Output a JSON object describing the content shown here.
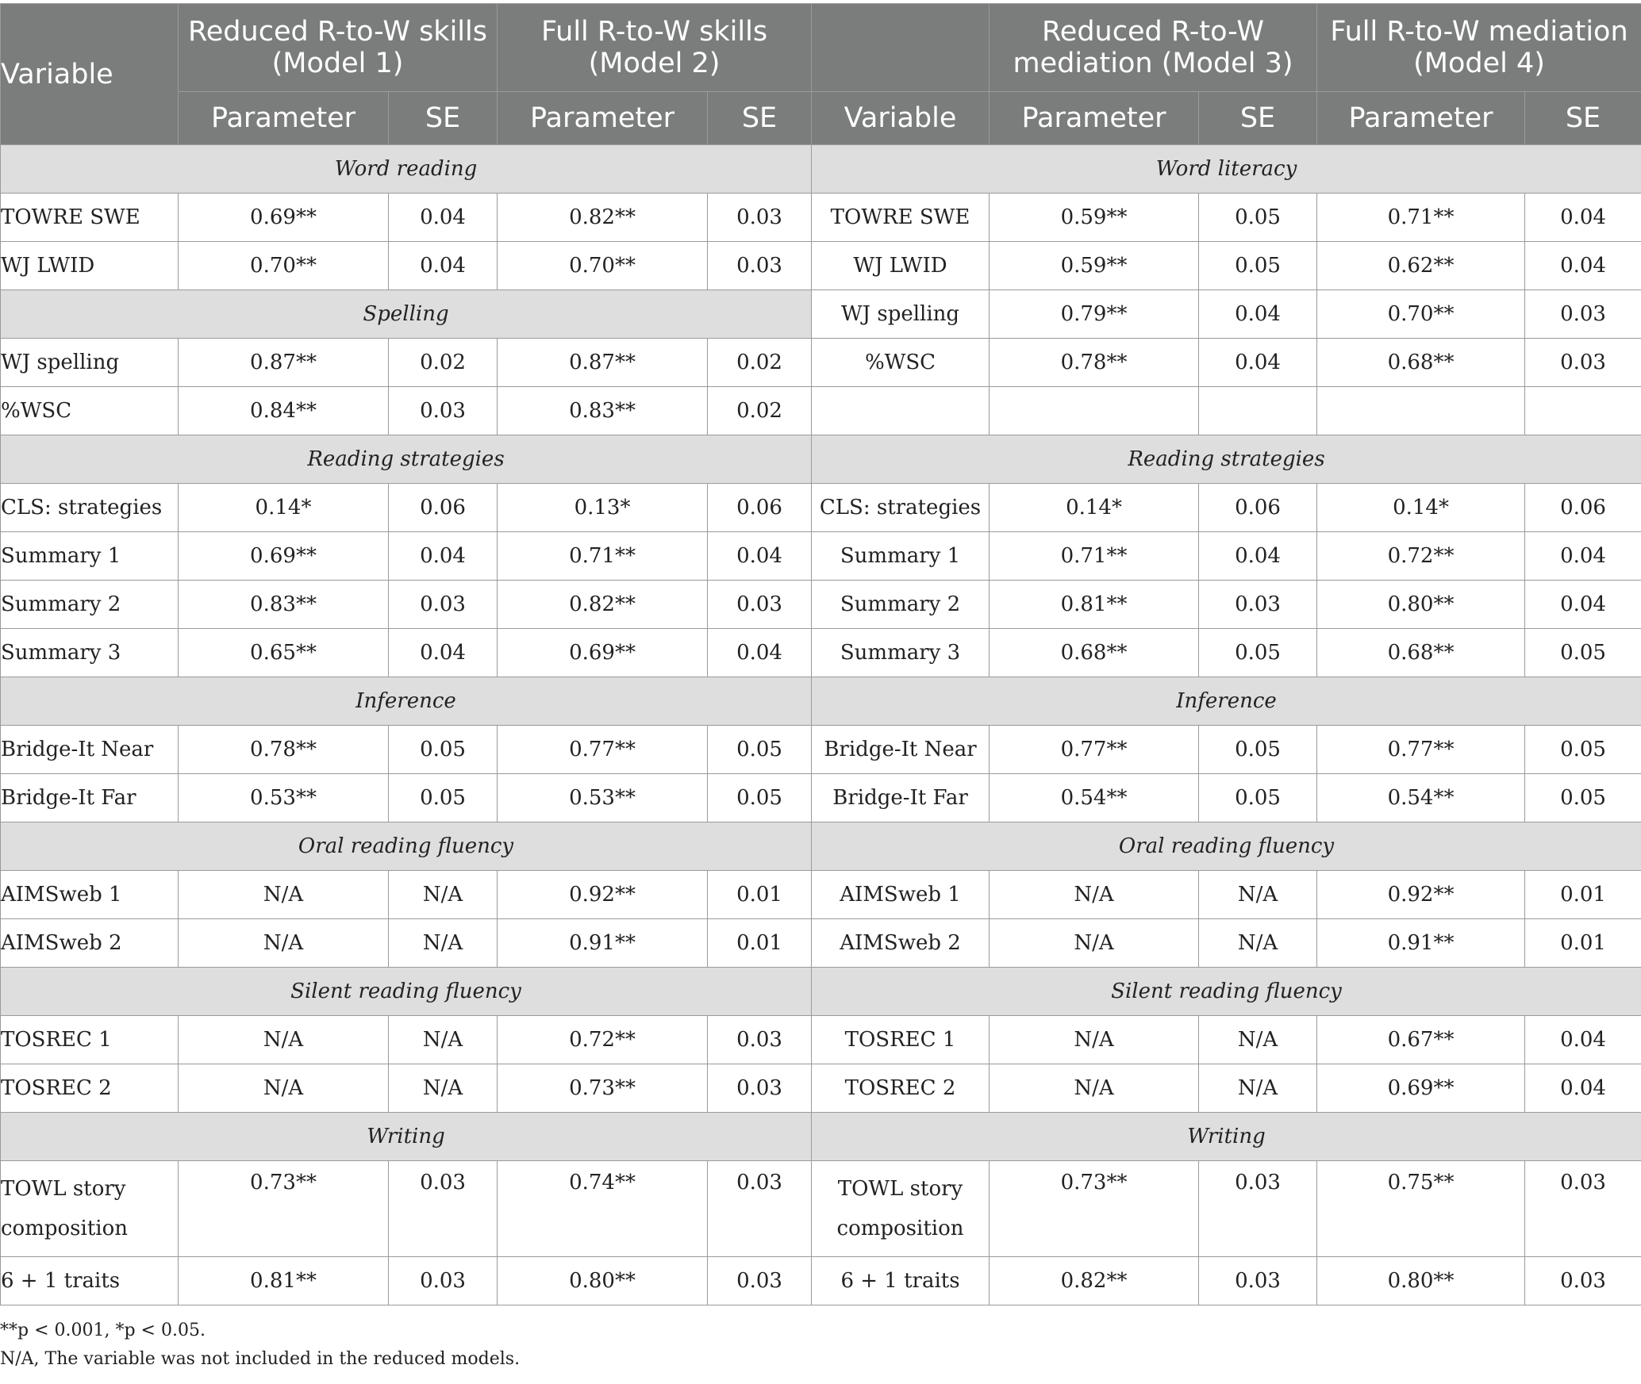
{
  "header": {
    "variable_label": "Variable",
    "model1": "Reduced R-to-W skills (Model 1)",
    "model2": "Full R-to-W skills (Model 2)",
    "model3": "Reduced R-to-W mediation (Model 3)",
    "model4": "Full R-to-W mediation (Model 4)",
    "parameter": "Parameter",
    "se": "SE",
    "variable_right": "Variable"
  },
  "sections": {
    "s1": {
      "left": "Word reading",
      "right": "Word literacy"
    },
    "s2": {
      "left": "Spelling"
    },
    "s3": {
      "left": "Reading strategies",
      "right": "Reading strategies"
    },
    "s4": {
      "left": "Inference",
      "right": "Inference"
    },
    "s5": {
      "left": "Oral reading fluency",
      "right": "Oral reading fluency"
    },
    "s6": {
      "left": "Silent reading fluency",
      "right": "Silent reading fluency"
    },
    "s7": {
      "left": "Writing",
      "right": "Writing"
    }
  },
  "rows": [
    {
      "lv": "TOWRE SWE",
      "m1p": "0.69**",
      "m1s": "0.04",
      "m2p": "0.82**",
      "m2s": "0.03",
      "rv": "TOWRE SWE",
      "m3p": "0.59**",
      "m3s": "0.05",
      "m4p": "0.71**",
      "m4s": "0.04"
    },
    {
      "lv": "WJ LWID",
      "m1p": "0.70**",
      "m1s": "0.04",
      "m2p": "0.70**",
      "m2s": "0.03",
      "rv": "WJ LWID",
      "m3p": "0.59**",
      "m3s": "0.05",
      "m4p": "0.62**",
      "m4s": "0.04"
    },
    {
      "rv": "WJ spelling",
      "m3p": "0.79**",
      "m3s": "0.04",
      "m4p": "0.70**",
      "m4s": "0.03"
    },
    {
      "lv": "WJ spelling",
      "m1p": "0.87**",
      "m1s": "0.02",
      "m2p": "0.87**",
      "m2s": "0.02",
      "rv": "%WSC",
      "m3p": "0.78**",
      "m3s": "0.04",
      "m4p": "0.68**",
      "m4s": "0.03"
    },
    {
      "lv": "%WSC",
      "m1p": "0.84**",
      "m1s": "0.03",
      "m2p": "0.83**",
      "m2s": "0.02"
    },
    {
      "lv": "CLS: strategies",
      "m1p": "0.14*",
      "m1s": "0.06",
      "m2p": "0.13*",
      "m2s": "0.06",
      "rv": "CLS: strategies",
      "m3p": "0.14*",
      "m3s": "0.06",
      "m4p": "0.14*",
      "m4s": "0.06"
    },
    {
      "lv": "Summary 1",
      "m1p": "0.69**",
      "m1s": "0.04",
      "m2p": "0.71**",
      "m2s": "0.04",
      "rv": "Summary 1",
      "m3p": "0.71**",
      "m3s": "0.04",
      "m4p": "0.72**",
      "m4s": "0.04"
    },
    {
      "lv": "Summary 2",
      "m1p": "0.83**",
      "m1s": "0.03",
      "m2p": "0.82**",
      "m2s": "0.03",
      "rv": "Summary 2",
      "m3p": "0.81**",
      "m3s": "0.03",
      "m4p": "0.80**",
      "m4s": "0.04"
    },
    {
      "lv": "Summary 3",
      "m1p": "0.65**",
      "m1s": "0.04",
      "m2p": "0.69**",
      "m2s": "0.04",
      "rv": "Summary 3",
      "m3p": "0.68**",
      "m3s": "0.05",
      "m4p": "0.68**",
      "m4s": "0.05"
    },
    {
      "lv": "Bridge-It Near",
      "m1p": "0.78**",
      "m1s": "0.05",
      "m2p": "0.77**",
      "m2s": "0.05",
      "rv": "Bridge-It Near",
      "m3p": "0.77**",
      "m3s": "0.05",
      "m4p": "0.77**",
      "m4s": "0.05"
    },
    {
      "lv": "Bridge-It Far",
      "m1p": "0.53**",
      "m1s": "0.05",
      "m2p": "0.53**",
      "m2s": "0.05",
      "rv": "Bridge-It Far",
      "m3p": "0.54**",
      "m3s": "0.05",
      "m4p": "0.54**",
      "m4s": "0.05"
    },
    {
      "lv": "AIMSweb 1",
      "m1p": "N/A",
      "m1s": "N/A",
      "m2p": "0.92**",
      "m2s": "0.01",
      "rv": "AIMSweb 1",
      "m3p": "N/A",
      "m3s": "N/A",
      "m4p": "0.92**",
      "m4s": "0.01"
    },
    {
      "lv": "AIMSweb 2",
      "m1p": "N/A",
      "m1s": "N/A",
      "m2p": "0.91**",
      "m2s": "0.01",
      "rv": "AIMSweb 2",
      "m3p": "N/A",
      "m3s": "N/A",
      "m4p": "0.91**",
      "m4s": "0.01"
    },
    {
      "lv": "TOSREC 1",
      "m1p": "N/A",
      "m1s": "N/A",
      "m2p": "0.72**",
      "m2s": "0.03",
      "rv": "TOSREC 1",
      "m3p": "N/A",
      "m3s": "N/A",
      "m4p": "0.67**",
      "m4s": "0.04"
    },
    {
      "lv": "TOSREC 2",
      "m1p": "N/A",
      "m1s": "N/A",
      "m2p": "0.73**",
      "m2s": "0.03",
      "rv": "TOSREC 2",
      "m3p": "N/A",
      "m3s": "N/A",
      "m4p": "0.69**",
      "m4s": "0.04"
    },
    {
      "lv": "TOWL story composition",
      "m1p": "0.73**",
      "m1s": "0.03",
      "m2p": "0.74**",
      "m2s": "0.03",
      "rv": "TOWL story composition",
      "m3p": "0.73**",
      "m3s": "0.03",
      "m4p": "0.75**",
      "m4s": "0.03"
    },
    {
      "lv": "6 + 1 traits",
      "m1p": "0.81**",
      "m1s": "0.03",
      "m2p": "0.80**",
      "m2s": "0.03",
      "rv": "6 + 1 traits",
      "m3p": "0.82**",
      "m3s": "0.03",
      "m4p": "0.80**",
      "m4s": "0.03"
    }
  ],
  "notes": {
    "significance": "**p < 0.001, *p < 0.05.",
    "na": "N/A, The variable was not included in the reduced models."
  }
}
